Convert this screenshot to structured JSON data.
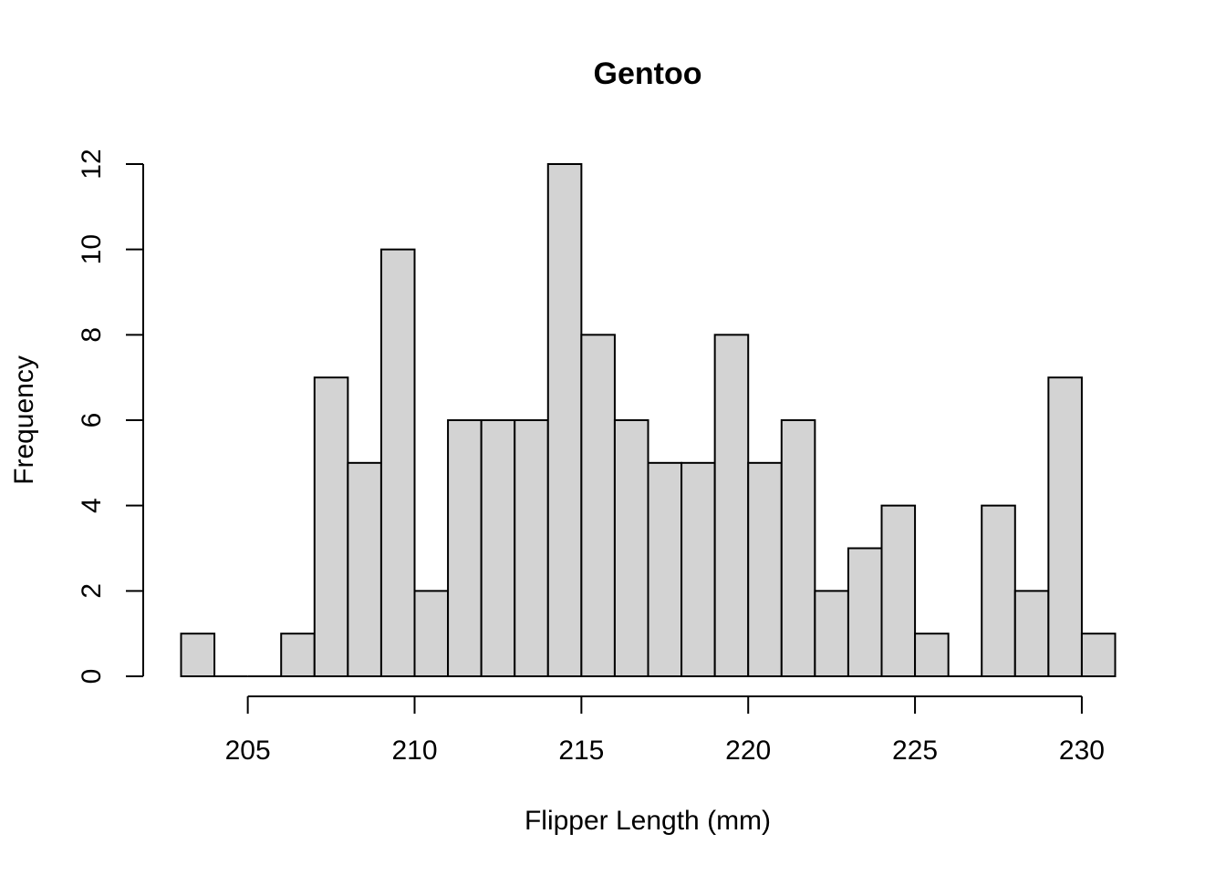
{
  "chart_data": {
    "type": "bar",
    "title": "Gentoo",
    "xlabel": "Flipper Length (mm)",
    "ylabel": "Frequency",
    "bin_width": 1,
    "bins": [
      {
        "x0": 203,
        "x1": 204,
        "count": 1
      },
      {
        "x0": 204,
        "x1": 205,
        "count": 0
      },
      {
        "x0": 205,
        "x1": 206,
        "count": 0
      },
      {
        "x0": 206,
        "x1": 207,
        "count": 1
      },
      {
        "x0": 207,
        "x1": 208,
        "count": 7
      },
      {
        "x0": 208,
        "x1": 209,
        "count": 5
      },
      {
        "x0": 209,
        "x1": 210,
        "count": 10
      },
      {
        "x0": 210,
        "x1": 211,
        "count": 2
      },
      {
        "x0": 211,
        "x1": 212,
        "count": 6
      },
      {
        "x0": 212,
        "x1": 213,
        "count": 6
      },
      {
        "x0": 213,
        "x1": 214,
        "count": 6
      },
      {
        "x0": 214,
        "x1": 215,
        "count": 12
      },
      {
        "x0": 215,
        "x1": 216,
        "count": 8
      },
      {
        "x0": 216,
        "x1": 217,
        "count": 6
      },
      {
        "x0": 217,
        "x1": 218,
        "count": 5
      },
      {
        "x0": 218,
        "x1": 219,
        "count": 5
      },
      {
        "x0": 219,
        "x1": 220,
        "count": 8
      },
      {
        "x0": 220,
        "x1": 221,
        "count": 5
      },
      {
        "x0": 221,
        "x1": 222,
        "count": 6
      },
      {
        "x0": 222,
        "x1": 223,
        "count": 2
      },
      {
        "x0": 223,
        "x1": 224,
        "count": 3
      },
      {
        "x0": 224,
        "x1": 225,
        "count": 4
      },
      {
        "x0": 225,
        "x1": 226,
        "count": 1
      },
      {
        "x0": 226,
        "x1": 227,
        "count": 0
      },
      {
        "x0": 227,
        "x1": 228,
        "count": 4
      },
      {
        "x0": 228,
        "x1": 229,
        "count": 2
      },
      {
        "x0": 229,
        "x1": 230,
        "count": 7
      },
      {
        "x0": 230,
        "x1": 231,
        "count": 1
      }
    ],
    "xticks": [
      "205",
      "210",
      "215",
      "220",
      "225",
      "230"
    ],
    "yticks": [
      "0",
      "2",
      "4",
      "6",
      "8",
      "10",
      "12"
    ],
    "xlim": [
      203,
      231
    ],
    "ylim": [
      0,
      12
    ],
    "bar_color": "#d3d3d3",
    "grid": false
  }
}
